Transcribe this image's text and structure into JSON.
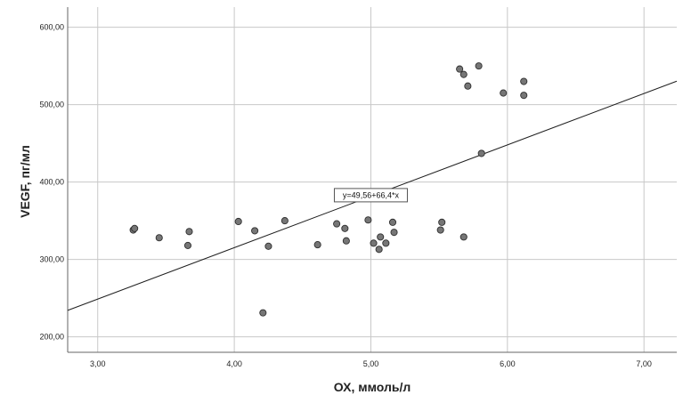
{
  "chart_data": {
    "type": "scatter",
    "xlabel": "ОХ, ммоль/л",
    "ylabel": "VEGF, пг/мл",
    "xlim": [
      2.78,
      7.24
    ],
    "ylim": [
      180,
      626
    ],
    "x_ticks": [
      3.0,
      4.0,
      5.0,
      6.0,
      7.0
    ],
    "x_tick_labels": [
      "3,00",
      "4,00",
      "5,00",
      "6,00",
      "7,00"
    ],
    "y_ticks": [
      200,
      300,
      400,
      500,
      600
    ],
    "y_tick_labels": [
      "200,00",
      "300,00",
      "400,00",
      "500,00",
      "600,00"
    ],
    "grid": true,
    "points": [
      {
        "x": 3.26,
        "y": 338
      },
      {
        "x": 3.27,
        "y": 340
      },
      {
        "x": 3.45,
        "y": 328
      },
      {
        "x": 3.66,
        "y": 318
      },
      {
        "x": 3.67,
        "y": 336
      },
      {
        "x": 4.03,
        "y": 349
      },
      {
        "x": 4.15,
        "y": 337
      },
      {
        "x": 4.21,
        "y": 231
      },
      {
        "x": 4.25,
        "y": 317
      },
      {
        "x": 4.37,
        "y": 350
      },
      {
        "x": 4.61,
        "y": 319
      },
      {
        "x": 4.75,
        "y": 346
      },
      {
        "x": 4.81,
        "y": 340
      },
      {
        "x": 4.82,
        "y": 324
      },
      {
        "x": 4.98,
        "y": 351
      },
      {
        "x": 5.02,
        "y": 321
      },
      {
        "x": 5.06,
        "y": 313
      },
      {
        "x": 5.07,
        "y": 329
      },
      {
        "x": 5.11,
        "y": 321
      },
      {
        "x": 5.16,
        "y": 348
      },
      {
        "x": 5.17,
        "y": 335
      },
      {
        "x": 5.51,
        "y": 338
      },
      {
        "x": 5.52,
        "y": 348
      },
      {
        "x": 5.65,
        "y": 546
      },
      {
        "x": 5.68,
        "y": 539
      },
      {
        "x": 5.68,
        "y": 329
      },
      {
        "x": 5.71,
        "y": 524
      },
      {
        "x": 5.79,
        "y": 550
      },
      {
        "x": 5.81,
        "y": 437
      },
      {
        "x": 5.97,
        "y": 515
      },
      {
        "x": 6.12,
        "y": 530
      },
      {
        "x": 6.12,
        "y": 512
      }
    ],
    "regression_line": {
      "intercept": 49.56,
      "slope": 66.4,
      "label": "y=49,56+66,4*x",
      "label_anchor": {
        "x": 5.0,
        "y": 383
      }
    },
    "colors": {
      "point_fill": "#767676",
      "point_stroke": "#2f2f2f",
      "grid": "#c8c8c8",
      "axis": "#666666",
      "line": "#1f1f1f"
    }
  }
}
